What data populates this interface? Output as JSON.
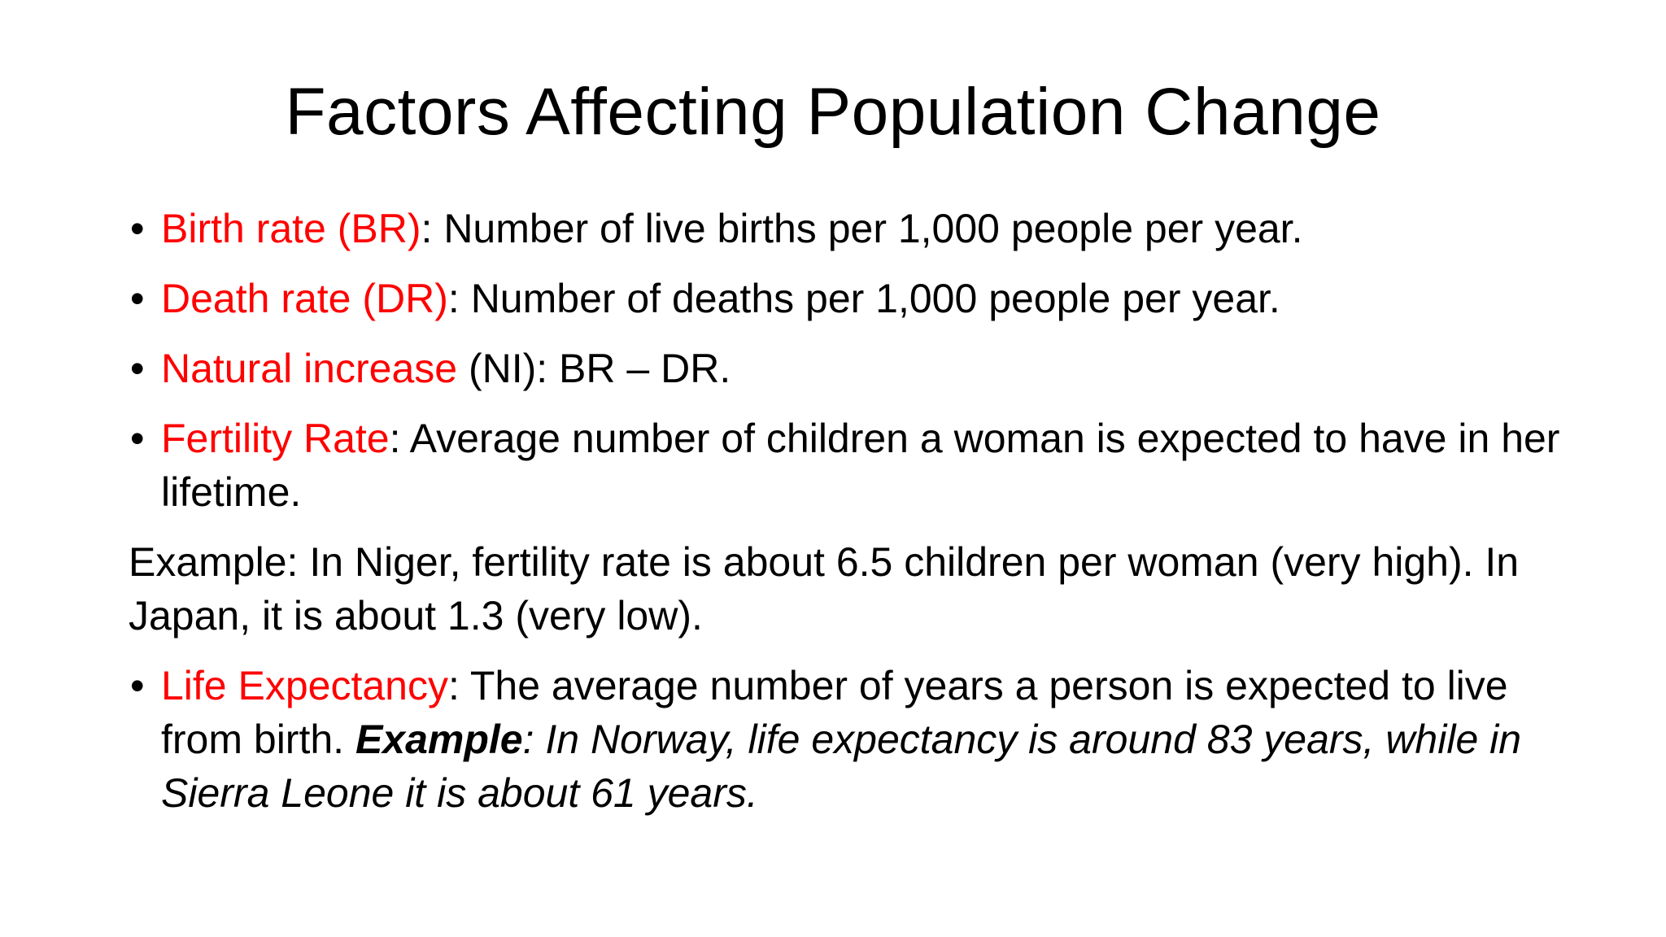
{
  "slide": {
    "title": "Factors Affecting Population Change",
    "bullet_glyph": "•",
    "items": [
      {
        "term": "Birth rate (BR)",
        "separator": ":",
        "text": " Number of live births per 1,000 people per year."
      },
      {
        "term": "Death rate (DR)",
        "separator": ":",
        "text": " Number of deaths per 1,000 people per year."
      },
      {
        "term": "Natural increase",
        "separator": " (NI):",
        "text": " BR – DR."
      },
      {
        "term": "Fertility Rate",
        "separator": ":",
        "text": " Average number of children a woman is expected to have in her lifetime."
      }
    ],
    "example_paragraph": "Example: In Niger, fertility rate is about 6.5 children per woman (very high). In Japan, it is about 1.3 (very low).",
    "life_item": {
      "term": "Life Expectancy",
      "separator": ":",
      "text": " The average number of years a person is expected to live from birth. ",
      "example_label": "Example",
      "example_text": ": In Norway, life expectancy is around 83 years, while in Sierra Leone it is about 61 years."
    }
  },
  "colors": {
    "term": "#ff0000",
    "text": "#000000",
    "background": "#ffffff"
  }
}
